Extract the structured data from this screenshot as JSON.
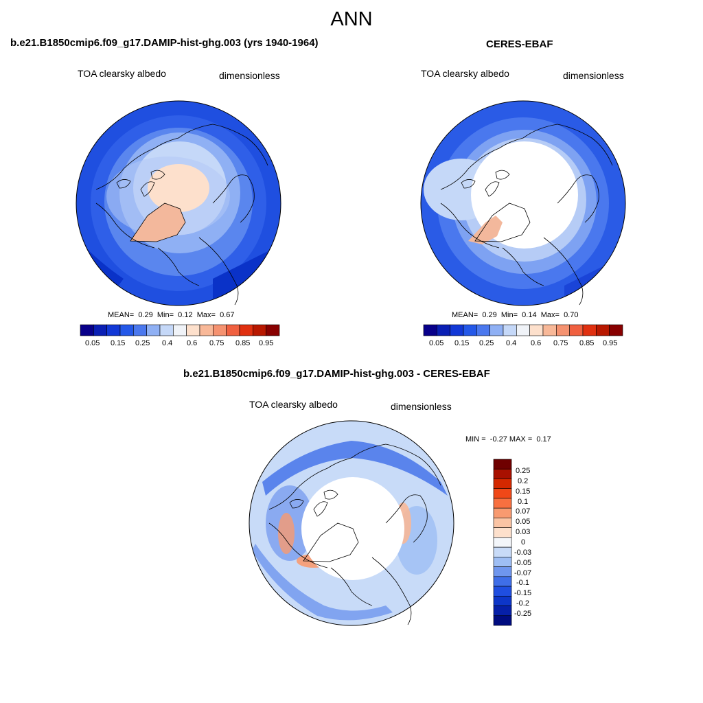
{
  "figure": {
    "title": "ANN"
  },
  "panels": [
    {
      "title": "b.e21.B1850cmip6.f09_g17.DAMIP-hist-ghg.003 (yrs 1940-1964)",
      "variable": "TOA clearsky albedo",
      "units": "dimensionless",
      "stats": {
        "mean_label": "MEAN=",
        "mean": "0.29",
        "min_label": "Min=",
        "min": "0.12",
        "max_label": "Max=",
        "max": "0.67"
      }
    },
    {
      "title": "CERES-EBAF",
      "variable": "TOA clearsky albedo",
      "units": "dimensionless",
      "stats": {
        "mean_label": "MEAN=",
        "mean": "0.29",
        "min_label": "Min=",
        "min": "0.14",
        "max_label": "Max=",
        "max": "0.70"
      }
    },
    {
      "title": "b.e21.B1850cmip6.f09_g17.DAMIP-hist-ghg.003 - CERES-EBAF",
      "variable": "TOA clearsky albedo",
      "units": "dimensionless",
      "stats": {
        "min_label": "MIN =",
        "min": "-0.27",
        "max_label": "MAX =",
        "max": "0.17"
      }
    }
  ],
  "colorbars": {
    "absolute": {
      "colors": [
        "#08008a",
        "#0a1fb4",
        "#1238d6",
        "#2458e8",
        "#4b78ee",
        "#8fb0f4",
        "#c5d8f8",
        "#f0f3f8",
        "#fde0cc",
        "#f8b898",
        "#f59270",
        "#f06040",
        "#e03010",
        "#b81800",
        "#880000"
      ],
      "ticks": [
        "0.05",
        "0.15",
        "0.25",
        "0.4",
        "0.6",
        "0.75",
        "0.85",
        "0.95"
      ]
    },
    "difference": {
      "colors": [
        "#6f0000",
        "#a81000",
        "#d42800",
        "#f04818",
        "#f87040",
        "#f89a70",
        "#fbc4a4",
        "#fde0cc",
        "#f3f6fa",
        "#c8dbf8",
        "#9ebef4",
        "#6f96ee",
        "#3f6ee8",
        "#1f4ee0",
        "#0d36c8",
        "#0620a8",
        "#000c80"
      ],
      "ticks": [
        "0.25",
        "0.2",
        "0.15",
        "0.1",
        "0.07",
        "0.05",
        "0.03",
        "0",
        "-0.03",
        "-0.05",
        "-0.07",
        "-0.1",
        "-0.15",
        "-0.2",
        "-0.25"
      ]
    }
  }
}
